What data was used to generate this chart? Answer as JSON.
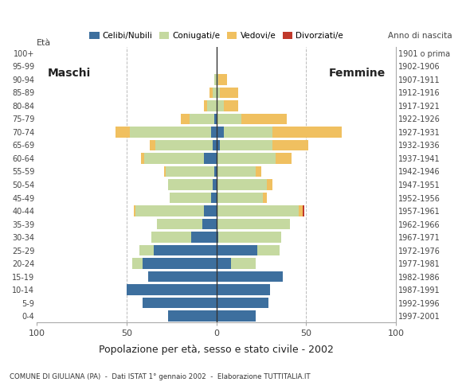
{
  "age_groups": [
    "0-4",
    "5-9",
    "10-14",
    "15-19",
    "20-24",
    "25-29",
    "30-34",
    "35-39",
    "40-44",
    "45-49",
    "50-54",
    "55-59",
    "60-64",
    "65-69",
    "70-74",
    "75-79",
    "80-84",
    "85-89",
    "90-94",
    "95-99",
    "100+"
  ],
  "birth_years": [
    "1997-2001",
    "1992-1996",
    "1987-1991",
    "1982-1986",
    "1977-1981",
    "1972-1976",
    "1967-1971",
    "1962-1966",
    "1957-1961",
    "1952-1956",
    "1947-1951",
    "1942-1946",
    "1937-1941",
    "1932-1936",
    "1927-1931",
    "1922-1926",
    "1917-1921",
    "1912-1916",
    "1907-1911",
    "1902-1906",
    "1901 o prima"
  ],
  "male": {
    "celibi": [
      27,
      41,
      50,
      38,
      41,
      35,
      14,
      8,
      7,
      3,
      2,
      1,
      7,
      2,
      3,
      1,
      0,
      0,
      0,
      0,
      0
    ],
    "coniugati": [
      0,
      0,
      0,
      0,
      6,
      8,
      22,
      25,
      38,
      23,
      25,
      27,
      33,
      32,
      45,
      14,
      5,
      2,
      1,
      0,
      0
    ],
    "vedovi": [
      0,
      0,
      0,
      0,
      0,
      0,
      0,
      0,
      1,
      0,
      0,
      1,
      2,
      3,
      8,
      5,
      2,
      2,
      0,
      0,
      0
    ],
    "divorziati": [
      0,
      0,
      0,
      0,
      0,
      0,
      0,
      0,
      0,
      0,
      0,
      0,
      0,
      0,
      0,
      0,
      0,
      0,
      0,
      0,
      0
    ]
  },
  "female": {
    "nubili": [
      22,
      29,
      30,
      37,
      8,
      23,
      1,
      0,
      0,
      0,
      0,
      0,
      0,
      2,
      4,
      0,
      0,
      0,
      0,
      0,
      0
    ],
    "coniugate": [
      0,
      0,
      0,
      0,
      14,
      12,
      35,
      41,
      46,
      26,
      28,
      22,
      33,
      29,
      27,
      14,
      4,
      2,
      1,
      0,
      0
    ],
    "vedove": [
      0,
      0,
      0,
      0,
      0,
      0,
      0,
      0,
      2,
      2,
      3,
      3,
      9,
      20,
      39,
      25,
      8,
      10,
      5,
      0,
      0
    ],
    "divorziate": [
      0,
      0,
      0,
      0,
      0,
      0,
      0,
      0,
      1,
      0,
      0,
      0,
      0,
      0,
      0,
      0,
      0,
      0,
      0,
      0,
      0
    ]
  },
  "colors": {
    "celibi": "#3d6f9e",
    "coniugati": "#c5d9a0",
    "vedovi": "#f0c060",
    "divorziati": "#c0392b"
  },
  "xlim": 100,
  "title": "Popolazione per età, sesso e stato civile - 2002",
  "subtitle": "COMUNE DI GIULIANA (PA)  -  Dati ISTAT 1° gennaio 2002  -  Elaborazione TUTTITALIA.IT",
  "label_eta": "Età",
  "label_anno": "Anno di nascita",
  "label_maschi": "Maschi",
  "label_femmine": "Femmine",
  "bg_color": "#ffffff",
  "grid_color": "#bbbbbb"
}
